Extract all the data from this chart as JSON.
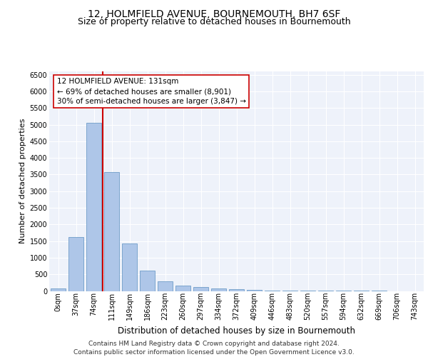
{
  "title": "12, HOLMFIELD AVENUE, BOURNEMOUTH, BH7 6SF",
  "subtitle": "Size of property relative to detached houses in Bournemouth",
  "xlabel": "Distribution of detached houses by size in Bournemouth",
  "ylabel": "Number of detached properties",
  "bar_color": "#aec6e8",
  "bar_edge_color": "#5b8fc0",
  "categories": [
    "0sqm",
    "37sqm",
    "74sqm",
    "111sqm",
    "149sqm",
    "186sqm",
    "223sqm",
    "260sqm",
    "297sqm",
    "334sqm",
    "372sqm",
    "409sqm",
    "446sqm",
    "483sqm",
    "520sqm",
    "557sqm",
    "594sqm",
    "632sqm",
    "669sqm",
    "706sqm",
    "743sqm"
  ],
  "values": [
    75,
    1620,
    5060,
    3580,
    1420,
    620,
    290,
    155,
    110,
    85,
    50,
    35,
    20,
    10,
    5,
    3,
    2,
    1,
    1,
    0,
    0
  ],
  "ylim": [
    0,
    6600
  ],
  "yticks": [
    0,
    500,
    1000,
    1500,
    2000,
    2500,
    3000,
    3500,
    4000,
    4500,
    5000,
    5500,
    6000,
    6500
  ],
  "vline_x": 2.5,
  "vline_color": "#cc0000",
  "annotation_text": "12 HOLMFIELD AVENUE: 131sqm\n← 69% of detached houses are smaller (8,901)\n30% of semi-detached houses are larger (3,847) →",
  "annotation_box_color": "#ffffff",
  "annotation_box_edge": "#cc0000",
  "footer1": "Contains HM Land Registry data © Crown copyright and database right 2024.",
  "footer2": "Contains public sector information licensed under the Open Government Licence v3.0.",
  "background_color": "#eef2fa",
  "grid_color": "#ffffff",
  "title_fontsize": 10,
  "subtitle_fontsize": 9,
  "xlabel_fontsize": 8.5,
  "ylabel_fontsize": 8,
  "tick_fontsize": 7,
  "annotation_fontsize": 7.5,
  "footer_fontsize": 6.5
}
